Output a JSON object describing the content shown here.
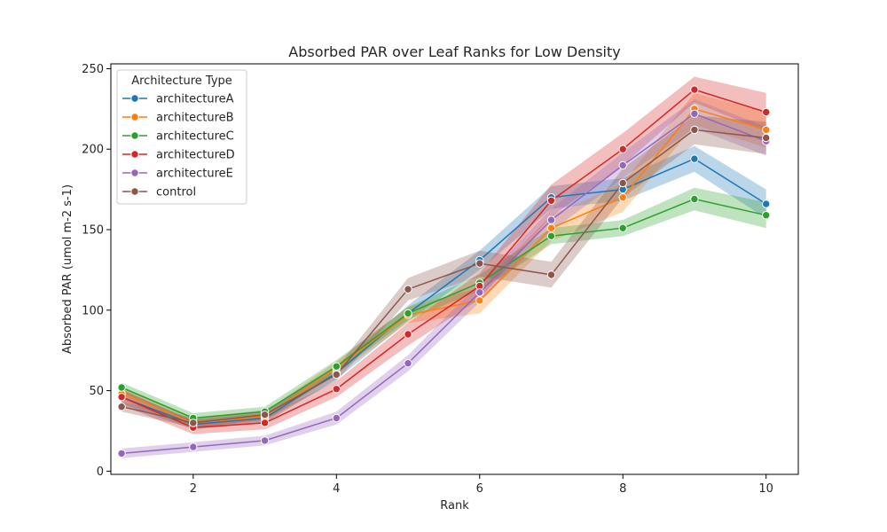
{
  "chart_data": {
    "type": "line",
    "title": "Absorbed PAR over Leaf Ranks for Low Density",
    "xlabel": "Rank",
    "ylabel": "Absorbed PAR (umol m-2 s-1)",
    "xlim": [
      0.85,
      10.45
    ],
    "ylim": [
      -2,
      253
    ],
    "xticks": [
      2,
      4,
      6,
      8,
      10
    ],
    "yticks": [
      0,
      50,
      100,
      150,
      200,
      250
    ],
    "grid": false,
    "legend": {
      "title": "Architecture Type",
      "placement": "top-left"
    },
    "x": [
      1,
      2,
      3,
      4,
      5,
      6,
      7,
      8,
      9,
      10
    ],
    "series": [
      {
        "name": "architectureA",
        "color": "#1f77b4",
        "values": [
          46,
          29,
          33,
          61,
          98,
          131,
          170,
          175,
          194,
          166
        ],
        "band": [
          4,
          3,
          3,
          4,
          5,
          6,
          7,
          7,
          8,
          9
        ]
      },
      {
        "name": "architectureB",
        "color": "#ff7f0e",
        "values": [
          48,
          30,
          34,
          64,
          97,
          106,
          151,
          170,
          225,
          212
        ],
        "band": [
          4,
          3,
          3,
          4,
          5,
          8,
          8,
          9,
          10,
          11
        ]
      },
      {
        "name": "architectureC",
        "color": "#2ca02c",
        "values": [
          52,
          33,
          37,
          65,
          98,
          117,
          146,
          151,
          169,
          159
        ],
        "band": [
          3,
          3,
          3,
          4,
          4,
          5,
          5,
          5,
          7,
          8
        ]
      },
      {
        "name": "architectureD",
        "color": "#d62728",
        "values": [
          46,
          27,
          30,
          51,
          85,
          115,
          168,
          200,
          237,
          223
        ],
        "band": [
          5,
          4,
          4,
          5,
          7,
          8,
          10,
          10,
          8,
          12
        ]
      },
      {
        "name": "architectureE",
        "color": "#9467bd",
        "values": [
          11,
          15,
          19,
          33,
          67,
          111,
          156,
          190,
          222,
          205
        ],
        "band": [
          3,
          3,
          3,
          4,
          5,
          6,
          7,
          8,
          9,
          9
        ]
      },
      {
        "name": "control",
        "color": "#8c564b",
        "values": [
          40,
          30,
          35,
          60,
          113,
          129,
          122,
          179,
          212,
          207
        ],
        "band": [
          3,
          3,
          3,
          4,
          7,
          8,
          8,
          9,
          9,
          10
        ]
      }
    ]
  }
}
